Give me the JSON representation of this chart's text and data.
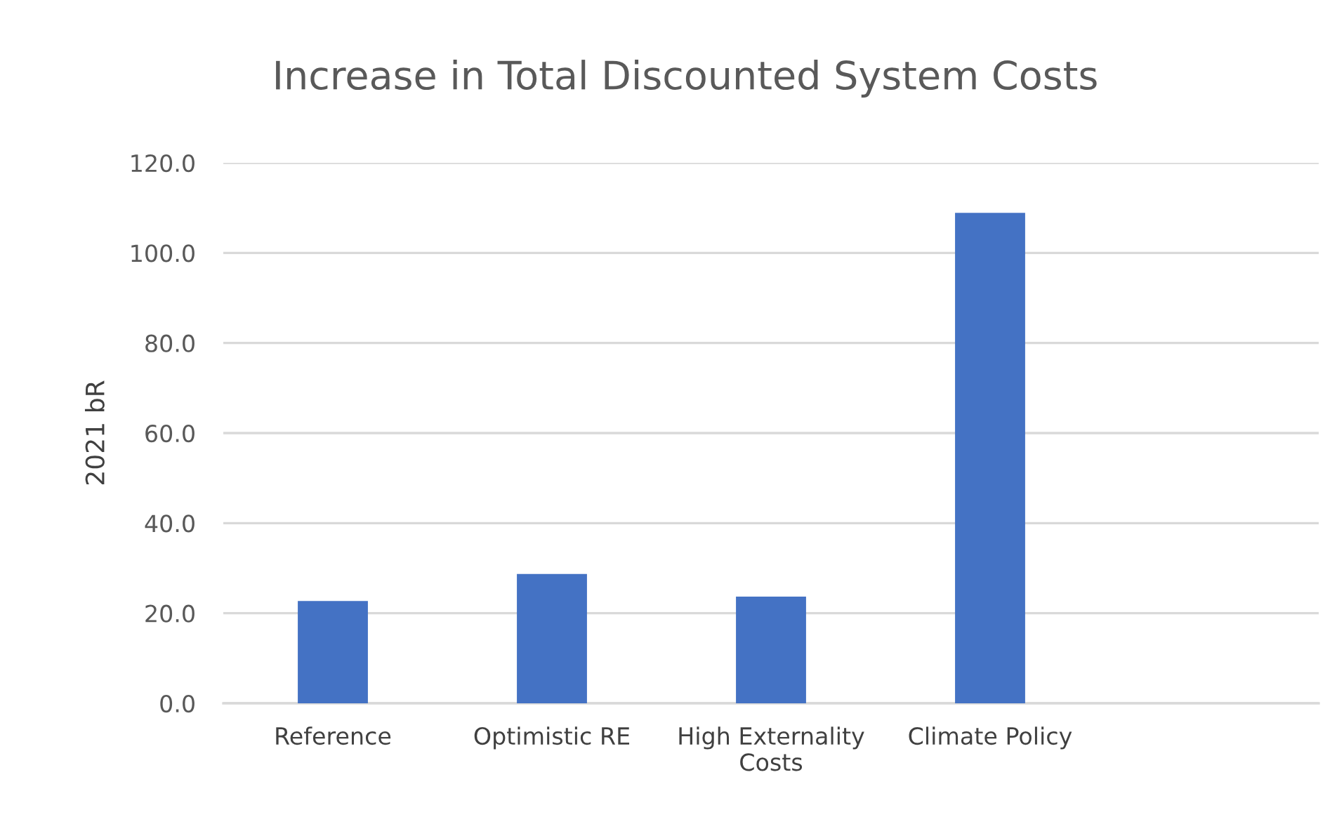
{
  "chart_data": {
    "type": "bar",
    "title": "Increase in Total Discounted System Costs",
    "ylabel": "2021 bR",
    "categories": [
      "Reference",
      "Optimistic RE",
      "High Externality\nCosts",
      "Climate Policy",
      null
    ],
    "values": [
      22.7,
      28.7,
      23.7,
      108.9,
      null
    ],
    "color": "#4472c4",
    "ylim": [
      0,
      120
    ],
    "yticks": [
      {
        "value": 0,
        "label": "0.0"
      },
      {
        "value": 20,
        "label": "20.0"
      },
      {
        "value": 40,
        "label": "40.0"
      },
      {
        "value": 60,
        "label": "60.0"
      },
      {
        "value": 80,
        "label": "80.0"
      },
      {
        "value": 100,
        "label": "100.0"
      },
      {
        "value": 120,
        "label": "120.0"
      }
    ],
    "grid": "y"
  }
}
